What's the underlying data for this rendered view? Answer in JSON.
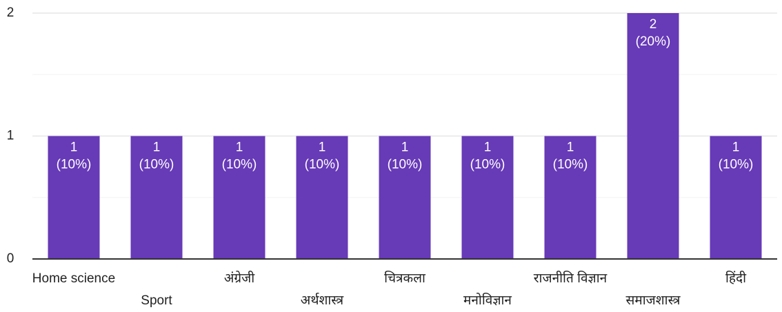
{
  "chart_data": {
    "type": "bar",
    "categories": [
      "Home science",
      "Sport",
      "अंग्रेजी",
      "अर्थशास्त्र",
      "चित्रकला",
      "मनोविज्ञान",
      "राजनीति विज्ञान",
      "समाजशास्त्र",
      "हिंदी"
    ],
    "values": [
      1,
      1,
      1,
      1,
      1,
      1,
      1,
      2,
      1
    ],
    "value_labels": [
      [
        "1",
        "(10%)"
      ],
      [
        "1",
        "(10%)"
      ],
      [
        "1",
        "(10%)"
      ],
      [
        "1",
        "(10%)"
      ],
      [
        "1",
        "(10%)"
      ],
      [
        "1",
        "(10%)"
      ],
      [
        "1",
        "(10%)"
      ],
      [
        "2",
        "(20%)"
      ],
      [
        "1",
        "(10%)"
      ]
    ],
    "color": "#673ab7",
    "ylim": [
      0,
      2
    ],
    "yticks": [
      0,
      1,
      2
    ],
    "minor_yticks": [
      0.5,
      1.5
    ],
    "grid": true
  }
}
